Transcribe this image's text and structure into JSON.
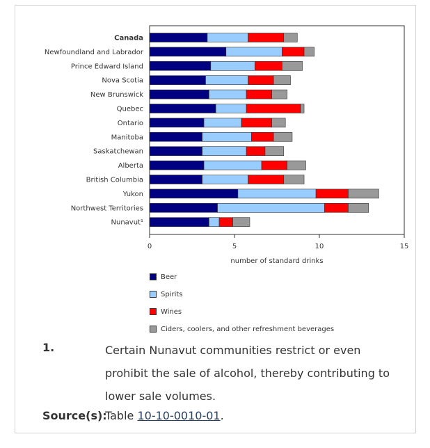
{
  "chart_data": {
    "type": "bar",
    "orientation": "horizontal",
    "stacked": true,
    "categories": [
      "Canada",
      "Newfoundland and Labrador",
      "Prince Edward Island",
      "Nova Scotia",
      "New Brunswick",
      "Quebec",
      "Ontario",
      "Manitoba",
      "Saskatchewan",
      "Alberta",
      "British Columbia",
      "Yukon",
      "Northwest Territories",
      "Nunavut¹"
    ],
    "bold_categories": [
      "Canada"
    ],
    "series": [
      {
        "name": "Beer",
        "color": "#000080",
        "values": [
          3.4,
          4.5,
          3.6,
          3.3,
          3.5,
          3.9,
          3.2,
          3.1,
          3.1,
          3.2,
          3.1,
          5.2,
          4.0,
          3.5
        ]
      },
      {
        "name": "Spirits",
        "color": "#99ccff",
        "values": [
          2.4,
          3.3,
          2.6,
          2.5,
          2.2,
          1.8,
          2.2,
          2.9,
          2.6,
          3.4,
          2.7,
          4.6,
          6.3,
          0.6
        ]
      },
      {
        "name": "Wines",
        "color": "#ff0000",
        "values": [
          2.1,
          1.3,
          1.6,
          1.5,
          1.5,
          3.2,
          1.8,
          1.3,
          1.1,
          1.5,
          2.1,
          1.9,
          1.4,
          0.8
        ]
      },
      {
        "name": "Ciders, coolers, and other refreshment beverages",
        "color": "#999999",
        "values": [
          0.8,
          0.6,
          1.2,
          1.0,
          0.9,
          0.2,
          0.8,
          1.1,
          1.1,
          1.1,
          1.2,
          1.8,
          1.2,
          1.0
        ]
      }
    ],
    "xlabel": "number of standard drinks",
    "ylabel": "",
    "xlim": [
      0,
      15
    ],
    "xticks": [
      0,
      5,
      10,
      15
    ],
    "grid": false,
    "legend_position": "bottom"
  },
  "footnote": {
    "number": "1.",
    "text": "Certain Nunavut communities restrict or even prohibit the sale of alcohol, thereby contributing to lower sale volumes."
  },
  "source": {
    "label": "Source(s):",
    "prefix": "Table ",
    "link_text": "10-10-0010-01",
    "suffix": "."
  }
}
